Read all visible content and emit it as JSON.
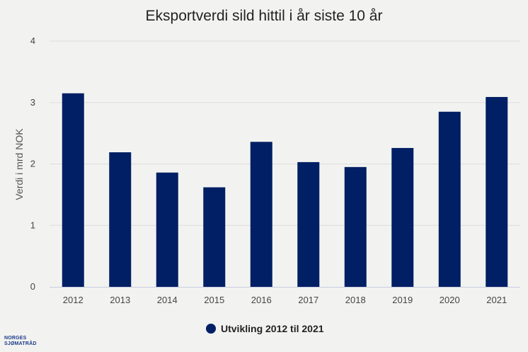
{
  "chart_data": {
    "type": "bar",
    "title": "Eksportverdi sild hittil i år siste 10 år",
    "ylabel": "Verdi i mrd NOK",
    "xlabel": "",
    "categories": [
      "2012",
      "2013",
      "2014",
      "2015",
      "2016",
      "2017",
      "2018",
      "2019",
      "2020",
      "2021"
    ],
    "series": [
      {
        "name": "Utvikling 2012 til 2021",
        "values": [
          3.15,
          2.19,
          1.86,
          1.62,
          2.36,
          2.03,
          1.95,
          2.26,
          2.85,
          3.09
        ],
        "color": "#001f64"
      }
    ],
    "ylim": [
      0,
      4
    ],
    "yticks": [
      0,
      1,
      2,
      3,
      4
    ],
    "grid": true,
    "legend_position": "bottom-center"
  },
  "logo": {
    "line1": "NORGES",
    "line2": "SJØMATRÅD",
    "color": "#1b3a8a"
  }
}
